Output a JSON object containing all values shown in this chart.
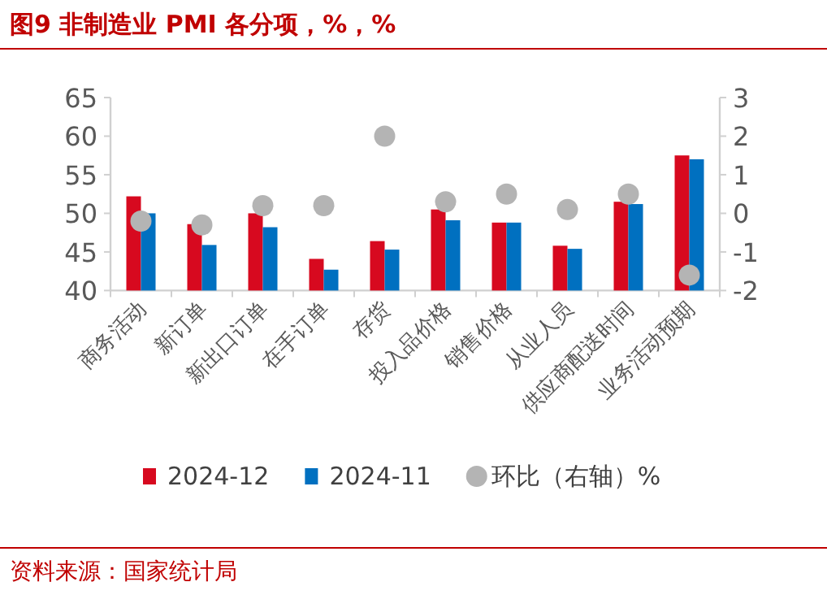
{
  "chart_data": {
    "type": "bar",
    "title": "图9 非制造业 PMI 各分项，%，%",
    "categories": [
      "商务活动",
      "新订单",
      "新出口订单",
      "在手订单",
      "存货",
      "投入品价格",
      "销售价格",
      "从业人员",
      "供应商配送时间",
      "业务活动预期"
    ],
    "series": [
      {
        "name": "2024-12",
        "color": "#d7091f",
        "values": [
          52.2,
          48.6,
          50.0,
          44.1,
          46.4,
          50.5,
          48.8,
          45.8,
          51.5,
          57.5
        ]
      },
      {
        "name": "2024-11",
        "color": "#0070c0",
        "values": [
          50.0,
          45.9,
          48.2,
          42.7,
          45.3,
          49.1,
          48.8,
          45.4,
          51.2,
          57.0
        ]
      },
      {
        "name": "环比（右轴）%",
        "type": "scatter",
        "axis": "y2",
        "marker": "circle",
        "color": "#b4b4b4",
        "values": [
          -0.2,
          -0.3,
          0.2,
          0.2,
          2.0,
          0.3,
          0.5,
          0.1,
          0.5,
          -1.6
        ]
      }
    ],
    "ylim": [
      40,
      65
    ],
    "yticks": [
      40,
      45,
      50,
      55,
      60,
      65
    ],
    "y2lim": [
      -2,
      3
    ],
    "y2ticks": [
      -2,
      -1,
      0,
      1,
      2,
      3
    ],
    "legend": "bottom",
    "grid": false,
    "annotations": [
      "资料来源：国家统计局"
    ]
  }
}
